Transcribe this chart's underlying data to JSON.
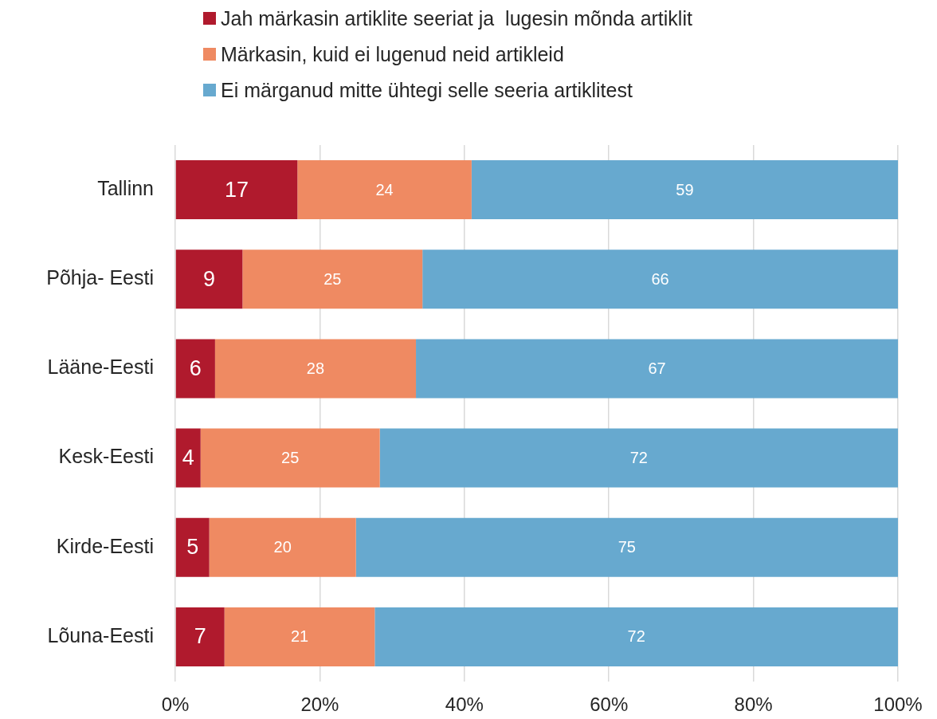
{
  "chart_data": {
    "type": "bar",
    "orientation": "horizontal",
    "stacked": true,
    "categories": [
      "Tallinn",
      "Põhja- Eesti",
      "Lääne-Eesti",
      "Kesk-Eesti",
      "Kirde-Eesti",
      "Lõuna-Eesti"
    ],
    "series": [
      {
        "name": "Jah märkasin artiklite seeriat ja  lugesin mõnda artiklit",
        "color": "#b01a2d",
        "values": [
          16.9,
          9.3,
          5.5,
          3.5,
          4.7,
          6.8
        ],
        "value_labels": [
          "17",
          "9",
          "6",
          "4",
          "5",
          "7"
        ]
      },
      {
        "name": "Märkasin, kuid ei lugenud neid artikleid",
        "color": "#ef8a62",
        "values": [
          24.1,
          24.9,
          27.8,
          24.8,
          20.3,
          20.8
        ],
        "value_labels": [
          "24",
          "25",
          "28",
          "25",
          "20",
          "21"
        ]
      },
      {
        "name": "Ei märganud mitte ühtegi selle seeria artiklitest",
        "color": "#67a9cf",
        "values": [
          59.0,
          65.8,
          66.7,
          71.7,
          75.0,
          72.4
        ],
        "value_labels": [
          "59",
          "66",
          "67",
          "72",
          "75",
          "72"
        ]
      }
    ],
    "xlim": [
      0,
      100
    ],
    "xticks": [
      {
        "value": 0,
        "label": "0%"
      },
      {
        "value": 20,
        "label": "20%"
      },
      {
        "value": 40,
        "label": "40%"
      },
      {
        "value": 60,
        "label": "60%"
      },
      {
        "value": 80,
        "label": "80%"
      },
      {
        "value": 100,
        "label": "100%"
      }
    ],
    "grid": "x",
    "legend": "top"
  }
}
